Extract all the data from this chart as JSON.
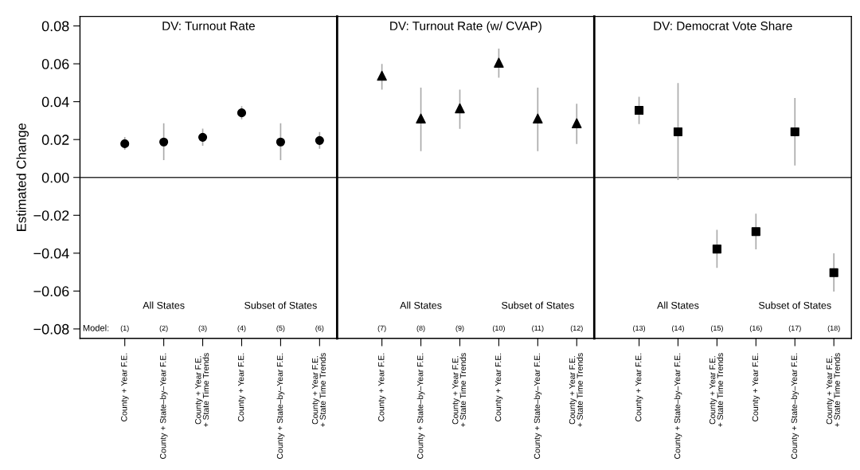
{
  "chart_data": [
    {
      "type": "scatter",
      "title": "DV: Turnout Rate",
      "ylabel": "Estimated Change",
      "categories": [
        "County + Year F.E.",
        "County + State–by–Year F.E.",
        "County + Year F.E.\n+ State Time Trends",
        "County + Year F.E.",
        "County + State–by–Year F.E.",
        "County + Year F.E.\n+ State Time Trends"
      ],
      "series": [
        {
          "color": "#000000",
          "values": [
            0.0178,
            0.0187,
            0.0212,
            0.0341,
            0.0187,
            0.0195
          ],
          "errors": [
            [
              0.0146,
              0.0213
            ],
            [
              0.0091,
              0.0286
            ],
            [
              0.0167,
              0.0258
            ],
            [
              0.0307,
              0.0376
            ],
            [
              0.0091,
              0.0286
            ],
            [
              0.0151,
              0.024
            ]
          ]
        }
      ],
      "marker": "circle",
      "ylim": [
        -0.085,
        0.085
      ],
      "yticks": [
        {
          "value": -0.08,
          "label": "−0.08"
        },
        {
          "value": -0.06,
          "label": "−0.06"
        },
        {
          "value": -0.04,
          "label": "−0.04"
        },
        {
          "value": -0.02,
          "label": "−0.02"
        },
        {
          "value": 0.0,
          "label": "0.00"
        },
        {
          "value": 0.02,
          "label": "0.02"
        },
        {
          "value": 0.04,
          "label": "0.04"
        },
        {
          "value": 0.06,
          "label": "0.06"
        },
        {
          "value": 0.08,
          "label": "0.08"
        }
      ],
      "ref_lines": [
        {
          "axis": "y",
          "value": 0,
          "color": "#333333"
        }
      ],
      "annotations": [
        "All States",
        "Subset of States",
        "Model:",
        "(1)",
        "(2)",
        "(3)",
        "(4)",
        "(5)",
        "(6)"
      ],
      "grid": false,
      "legend": false
    },
    {
      "type": "scatter",
      "title": "DV: Turnout Rate (w/ CVAP)",
      "categories": [
        "County + Year F.E.",
        "County + State–by–Year F.E.",
        "County + Year F.E.\n+ State Time Trends",
        "County + Year F.E.",
        "County + State–by–Year F.E.",
        "County + Year F.E.\n+ State Time Trends"
      ],
      "series": [
        {
          "color": "#000000",
          "values": [
            0.0537,
            0.0311,
            0.0365,
            0.0606,
            0.0311,
            0.0286
          ],
          "errors": [
            [
              0.0464,
              0.0599
            ],
            [
              0.0139,
              0.0474
            ],
            [
              0.0256,
              0.0464
            ],
            [
              0.0527,
              0.068
            ],
            [
              0.0139,
              0.0474
            ],
            [
              0.0177,
              0.0389
            ]
          ]
        }
      ],
      "marker": "triangle",
      "ylim": [
        -0.085,
        0.085
      ],
      "tick_labels": "x",
      "ref_lines": [
        {
          "axis": "y",
          "value": 0,
          "color": "#333333"
        }
      ],
      "annotations": [
        "All States",
        "Subset of States",
        "(7)",
        "(8)",
        "(9)",
        "(10)",
        "(11)",
        "(12)"
      ],
      "grid": false,
      "legend": false
    },
    {
      "type": "scatter",
      "title": "DV: Democrat Vote Share",
      "categories": [
        "County + Year F.E.",
        "County + State–by–Year F.E.",
        "County + Year F.E.\n+ State Time Trends",
        "County + Year F.E.",
        "County + State–by–Year F.E.",
        "County + Year F.E.\n+ State Time Trends"
      ],
      "series": [
        {
          "color": "#000000",
          "values": [
            0.0354,
            0.0241,
            -0.0378,
            -0.0286,
            0.0241,
            -0.0503
          ],
          "errors": [
            [
              0.0282,
              0.0426
            ],
            [
              -0.0014,
              0.0498
            ],
            [
              -0.0478,
              -0.0277
            ],
            [
              -0.038,
              -0.0191
            ],
            [
              0.0063,
              0.042
            ],
            [
              -0.0603,
              -0.0401
            ]
          ]
        }
      ],
      "marker": "square",
      "ylim": [
        -0.085,
        0.085
      ],
      "tick_labels": "x",
      "ref_lines": [
        {
          "axis": "y",
          "value": 0,
          "color": "#333333"
        }
      ],
      "annotations": [
        "All States",
        "Subset of States",
        "(13)",
        "(14)",
        "(15)",
        "(16)",
        "(17)",
        "(18)"
      ],
      "grid": false,
      "legend": false
    }
  ]
}
